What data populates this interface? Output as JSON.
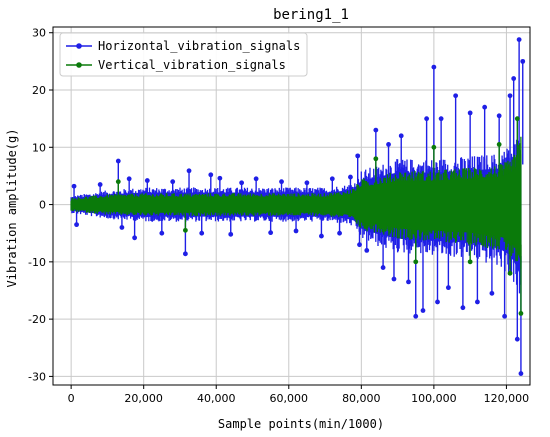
{
  "chart_data": {
    "type": "line",
    "title": "bering1_1",
    "xlabel": "Sample points(min/1000)",
    "ylabel": "Vibration amplitude(g)",
    "xlim": [
      -5000,
      126500
    ],
    "ylim": [
      -31.5,
      31
    ],
    "xticks": [
      0,
      20000,
      40000,
      60000,
      80000,
      100000,
      120000
    ],
    "xtick_labels": [
      "0",
      "20,000",
      "40,000",
      "60,000",
      "80,000",
      "100,000",
      "120,000"
    ],
    "yticks": [
      -30,
      -20,
      -10,
      0,
      10,
      20,
      30
    ],
    "ytick_labels": [
      "-30",
      "-20",
      "-10",
      "0",
      "10",
      "20",
      "30"
    ],
    "grid": true,
    "legend_position": "upper-left",
    "series": [
      {
        "name": "Horizontal_vibration_signals",
        "color": "#1f1fe6",
        "marker": "dot",
        "envelope": {
          "x": [
            0,
            5000,
            10000,
            20000,
            30000,
            40000,
            50000,
            60000,
            70000,
            76000,
            78000,
            80000,
            85000,
            90000,
            100000,
            110000,
            118000,
            120000,
            122000,
            123000,
            124000
          ],
          "upper": [
            1.5,
            2.0,
            2.5,
            3.0,
            3.0,
            3.0,
            3.0,
            3.0,
            3.0,
            3.5,
            4.0,
            6.0,
            7.0,
            8.0,
            8.0,
            8.5,
            9.0,
            10.0,
            11.0,
            12.0,
            14.0
          ],
          "lower": [
            -1.5,
            -2.0,
            -2.5,
            -3.0,
            -3.0,
            -3.0,
            -3.0,
            -3.0,
            -3.0,
            -3.5,
            -4.0,
            -6.0,
            -7.5,
            -8.5,
            -9.0,
            -9.5,
            -11.0,
            -12.0,
            -14.0,
            -16.0,
            -18.0
          ]
        },
        "peaks": [
          {
            "x": 800,
            "y": 3.2
          },
          {
            "x": 1500,
            "y": -3.5
          },
          {
            "x": 8000,
            "y": 3.5
          },
          {
            "x": 13000,
            "y": 7.6
          },
          {
            "x": 14000,
            "y": -4.0
          },
          {
            "x": 16000,
            "y": 4.5
          },
          {
            "x": 17500,
            "y": -5.8
          },
          {
            "x": 21000,
            "y": 4.2
          },
          {
            "x": 25000,
            "y": -5.0
          },
          {
            "x": 28000,
            "y": 4.0
          },
          {
            "x": 31500,
            "y": -8.6
          },
          {
            "x": 32500,
            "y": 5.9
          },
          {
            "x": 36000,
            "y": -5.0
          },
          {
            "x": 38500,
            "y": 5.2
          },
          {
            "x": 41000,
            "y": 4.6
          },
          {
            "x": 44000,
            "y": -5.2
          },
          {
            "x": 47000,
            "y": 3.8
          },
          {
            "x": 51000,
            "y": 4.5
          },
          {
            "x": 55000,
            "y": -4.9
          },
          {
            "x": 58000,
            "y": 4.0
          },
          {
            "x": 62000,
            "y": -4.6
          },
          {
            "x": 65000,
            "y": 3.8
          },
          {
            "x": 69000,
            "y": -5.5
          },
          {
            "x": 72000,
            "y": 4.5
          },
          {
            "x": 74000,
            "y": -5.0
          },
          {
            "x": 77000,
            "y": 4.8
          },
          {
            "x": 79000,
            "y": 8.5
          },
          {
            "x": 79500,
            "y": -7.0
          },
          {
            "x": 81500,
            "y": -8.0
          },
          {
            "x": 84000,
            "y": 13.0
          },
          {
            "x": 86000,
            "y": -11.0
          },
          {
            "x": 87500,
            "y": 10.5
          },
          {
            "x": 89000,
            "y": -13.0
          },
          {
            "x": 91000,
            "y": 12.0
          },
          {
            "x": 93000,
            "y": -13.5
          },
          {
            "x": 95000,
            "y": -19.5
          },
          {
            "x": 97000,
            "y": -18.5
          },
          {
            "x": 98000,
            "y": 15.0
          },
          {
            "x": 100000,
            "y": 24.0
          },
          {
            "x": 101000,
            "y": -17.0
          },
          {
            "x": 102000,
            "y": 15.0
          },
          {
            "x": 104000,
            "y": -14.5
          },
          {
            "x": 106000,
            "y": 19.0
          },
          {
            "x": 108000,
            "y": -18.0
          },
          {
            "x": 110000,
            "y": 16.0
          },
          {
            "x": 112000,
            "y": -17.0
          },
          {
            "x": 114000,
            "y": 17.0
          },
          {
            "x": 116000,
            "y": -15.5
          },
          {
            "x": 118000,
            "y": 15.5
          },
          {
            "x": 119500,
            "y": -19.5
          },
          {
            "x": 121000,
            "y": 19.0
          },
          {
            "x": 122000,
            "y": 22.0
          },
          {
            "x": 123000,
            "y": -23.5
          },
          {
            "x": 123500,
            "y": 28.8
          },
          {
            "x": 124000,
            "y": -29.5
          },
          {
            "x": 124500,
            "y": 25.0
          }
        ]
      },
      {
        "name": "Vertical_vibration_signals",
        "color": "#0a7a0a",
        "marker": "dot",
        "envelope": {
          "x": [
            0,
            5000,
            10000,
            20000,
            30000,
            40000,
            50000,
            60000,
            70000,
            76000,
            78000,
            80000,
            85000,
            90000,
            100000,
            110000,
            118000,
            120000,
            122000,
            123000,
            124000
          ],
          "upper": [
            1.2,
            1.5,
            1.8,
            2.0,
            2.0,
            2.0,
            2.0,
            2.0,
            2.0,
            2.5,
            3.0,
            4.5,
            5.0,
            6.0,
            6.0,
            6.5,
            7.0,
            7.5,
            8.5,
            10.0,
            12.0
          ],
          "lower": [
            -1.2,
            -1.5,
            -1.8,
            -2.0,
            -2.0,
            -2.0,
            -2.0,
            -2.0,
            -2.0,
            -2.5,
            -3.0,
            -4.5,
            -5.0,
            -6.0,
            -6.5,
            -7.0,
            -8.0,
            -8.5,
            -10.0,
            -12.0,
            -14.0
          ]
        },
        "peaks": [
          {
            "x": 13000,
            "y": 4.0
          },
          {
            "x": 31500,
            "y": -4.5
          },
          {
            "x": 84000,
            "y": 8.0
          },
          {
            "x": 95000,
            "y": -10.0
          },
          {
            "x": 100000,
            "y": 10.0
          },
          {
            "x": 110000,
            "y": -10.0
          },
          {
            "x": 118000,
            "y": 10.5
          },
          {
            "x": 121000,
            "y": -12.0
          },
          {
            "x": 123000,
            "y": 15.0
          },
          {
            "x": 124000,
            "y": -19.0
          }
        ]
      }
    ]
  }
}
